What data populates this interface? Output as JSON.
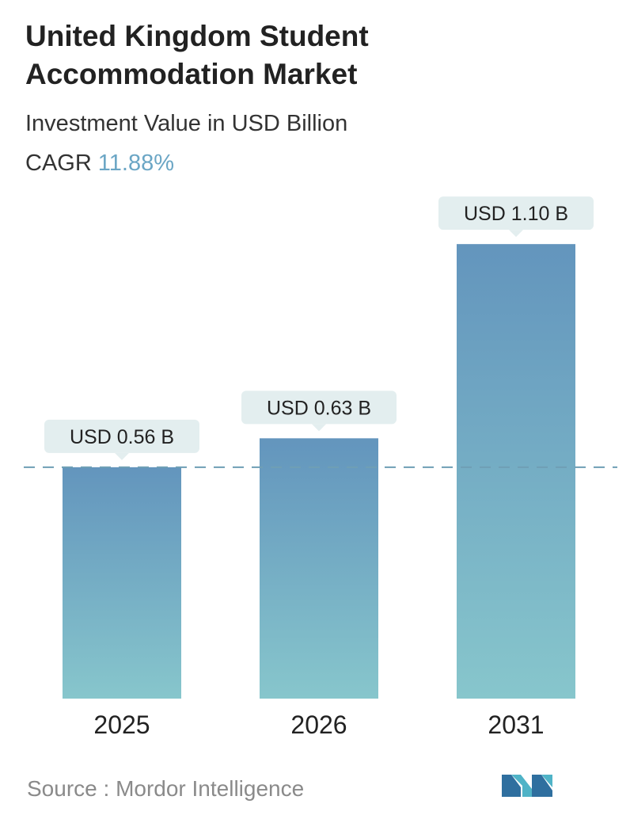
{
  "header": {
    "title_line1": "United Kingdom Student",
    "title_line2": "Accommodation Market",
    "subtitle": "Investment Value in USD Billion",
    "cagr_label": "CAGR",
    "cagr_value": "11.88%"
  },
  "chart_data": {
    "type": "bar",
    "title": "United Kingdom Student Accommodation Market",
    "subtitle": "Investment Value in USD Billion",
    "categories": [
      "2025",
      "2026",
      "2031"
    ],
    "values": [
      0.56,
      0.63,
      1.1
    ],
    "data_labels": [
      "USD 0.56 B",
      "USD 0.63 B",
      "USD 1.10 B"
    ],
    "xlabel": "",
    "ylabel": "",
    "ylim": [
      0,
      1.2
    ],
    "grid": false,
    "reference_line": 0.56,
    "bar_color_top": "#6395bd",
    "bar_color_bottom": "#87c6cc",
    "label_bg": "#e3eeef"
  },
  "footer": {
    "source_label": "Source :",
    "source_name": "Mordor Intelligence",
    "logo_icon": "mordor-intelligence-logo-icon"
  }
}
